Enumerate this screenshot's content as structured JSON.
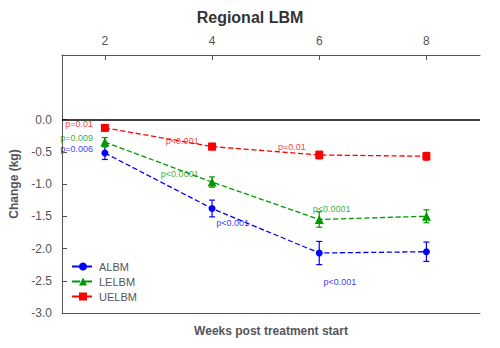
{
  "chart_data": {
    "type": "line",
    "title": "Regional LBM",
    "xlabel": "Weeks post treatment start",
    "ylabel": "Change (kg)",
    "x": [
      2,
      4,
      6,
      8
    ],
    "xlim": [
      1.2,
      9.0
    ],
    "xticks": [
      2,
      4,
      6,
      8
    ],
    "ylim": [
      -3.0,
      1.0
    ],
    "yticks": [
      {
        "value": 0,
        "label": "0.0"
      },
      -0.5,
      {
        "value": -1,
        "label": "-1.0"
      },
      -1.5,
      {
        "value": -2,
        "label": "-2.0"
      },
      -2.5,
      {
        "value": -3,
        "label": "-3.0"
      }
    ],
    "grid": false,
    "legend": "lower left",
    "line_style": "dashed",
    "series": [
      {
        "name": "ALBM",
        "color": "#0000FF",
        "marker": "circle",
        "values": [
          -0.52,
          -1.38,
          -2.07,
          -2.05
        ],
        "sem": [
          0.1,
          0.13,
          0.18,
          0.15
        ]
      },
      {
        "name": "LELBM",
        "color": "#009900",
        "marker": "triangle",
        "values": [
          -0.35,
          -0.97,
          -1.55,
          -1.5
        ],
        "sem": [
          0.07,
          0.08,
          0.12,
          0.1
        ]
      },
      {
        "name": "UELBM",
        "color": "#FF0000",
        "marker": "square",
        "values": [
          -0.13,
          -0.42,
          -0.55,
          -0.57
        ],
        "sem": [
          0.05,
          0.05,
          0.06,
          0.06
        ]
      }
    ],
    "hline": {
      "y": 0,
      "color": "#000000"
    },
    "annotations": [
      {
        "text": "p=0.01",
        "x": 1.78,
        "y": -0.075,
        "color": "#FF0000",
        "align": "right"
      },
      {
        "text": "p=0.009",
        "x": 1.78,
        "y": -0.285,
        "color": "#009900",
        "align": "right"
      },
      {
        "text": "p=0.006",
        "x": 1.78,
        "y": -0.46,
        "color": "#0000FF",
        "align": "right"
      },
      {
        "text": "p<0.001",
        "x": 3.75,
        "y": -0.33,
        "color": "#FF0000",
        "align": "right"
      },
      {
        "text": "p<0.0001",
        "x": 3.75,
        "y": -0.84,
        "color": "#009900",
        "align": "right"
      },
      {
        "text": "p<0.001",
        "x": 4.08,
        "y": -1.6,
        "color": "#0000FF",
        "align": "left"
      },
      {
        "text": "p=0.01",
        "x": 5.75,
        "y": -0.42,
        "color": "#FF0000",
        "align": "right"
      },
      {
        "text": "p<0.0001",
        "x": 5.88,
        "y": -1.38,
        "color": "#009900",
        "align": "left"
      },
      {
        "text": "p<0.001",
        "x": 6.08,
        "y": -2.52,
        "color": "#0000FF",
        "align": "left"
      }
    ]
  }
}
